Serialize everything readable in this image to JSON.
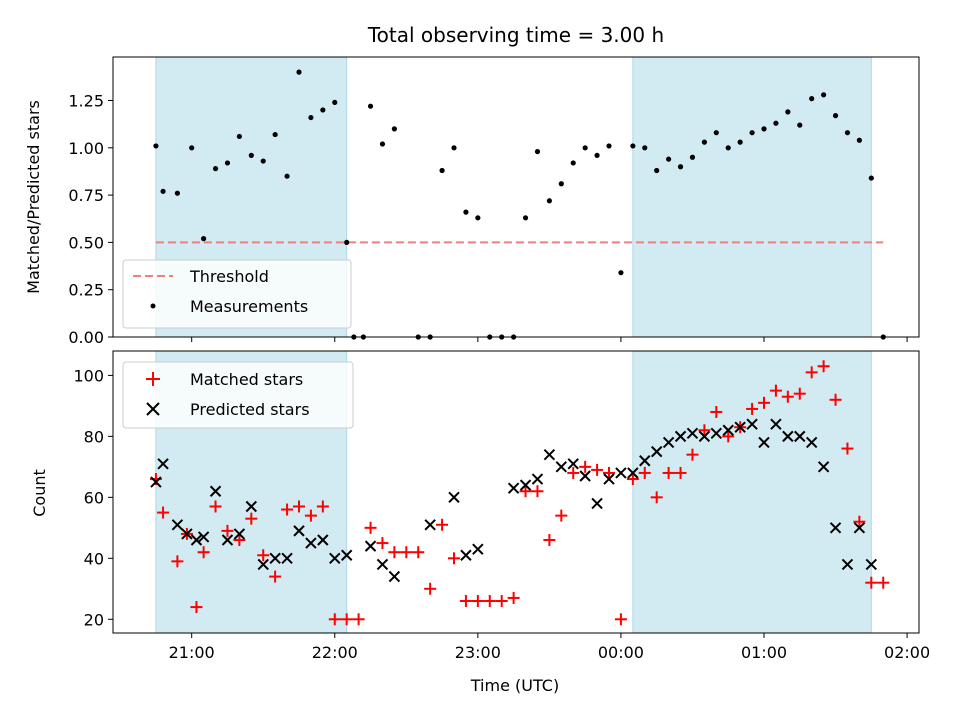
{
  "chart_data": [
    {
      "panel": "top",
      "type": "scatter",
      "title": "Total observing time = 3.00 h",
      "ylabel": "Matched/Predicted stars",
      "ylim": [
        0,
        1.48
      ],
      "yticks": [
        "0.00",
        "0.25",
        "0.50",
        "0.75",
        "1.00",
        "1.25"
      ],
      "shaded_intervals": [
        [
          "20:45",
          "22:05"
        ],
        [
          "00:05",
          "01:45"
        ]
      ],
      "shade_color": "#add8e6",
      "threshold": {
        "name": "Threshold",
        "y": 0.5,
        "x_range": [
          "20:45",
          "01:50"
        ],
        "color": "#f08080"
      },
      "series": [
        {
          "name": "Measurements",
          "color": "#000000",
          "x": [
            "20:45",
            "20:48",
            "20:54",
            "21:00",
            "21:05",
            "21:10",
            "21:15",
            "21:20",
            "21:25",
            "21:30",
            "21:35",
            "21:40",
            "21:45",
            "21:50",
            "21:55",
            "22:00",
            "22:05",
            "22:08",
            "22:12",
            "22:15",
            "22:20",
            "22:25",
            "22:35",
            "22:40",
            "22:45",
            "22:50",
            "22:55",
            "23:00",
            "23:05",
            "23:10",
            "23:15",
            "23:20",
            "23:25",
            "23:30",
            "23:35",
            "23:40",
            "23:45",
            "23:50",
            "23:55",
            "00:00",
            "00:05",
            "00:10",
            "00:15",
            "00:20",
            "00:25",
            "00:30",
            "00:35",
            "00:40",
            "00:45",
            "00:50",
            "00:55",
            "01:00",
            "01:05",
            "01:10",
            "01:15",
            "01:20",
            "01:25",
            "01:30",
            "01:35",
            "01:40",
            "01:45",
            "01:50"
          ],
          "y": [
            1.01,
            0.77,
            0.76,
            1.0,
            0.52,
            0.89,
            0.92,
            1.06,
            0.96,
            0.93,
            1.07,
            0.85,
            1.4,
            1.16,
            1.2,
            1.24,
            0.5,
            0.0,
            0.0,
            1.22,
            1.02,
            1.1,
            0.0,
            0.0,
            0.88,
            1.0,
            0.66,
            0.63,
            0.0,
            0.0,
            0.0,
            0.63,
            0.98,
            0.72,
            0.81,
            0.92,
            1.0,
            0.96,
            1.01,
            0.34,
            1.01,
            1.0,
            0.88,
            0.94,
            0.9,
            0.95,
            1.03,
            1.08,
            1.0,
            1.03,
            1.08,
            1.1,
            1.13,
            1.19,
            1.12,
            1.26,
            1.28,
            1.17,
            1.08,
            1.04,
            0.84,
            0.0
          ]
        }
      ],
      "legend": {
        "location": "lower-left",
        "entries": [
          "Threshold",
          "Measurements"
        ]
      }
    },
    {
      "panel": "bottom",
      "type": "scatter",
      "xlabel": "Time (UTC)",
      "ylabel": "Count",
      "ylim": [
        15.5,
        108
      ],
      "yticks": [
        "20",
        "40",
        "60",
        "80",
        "100"
      ],
      "xticks": [
        "21:00",
        "22:00",
        "23:00",
        "00:00",
        "01:00",
        "02:00"
      ],
      "x_range": [
        "20:27",
        "02:05"
      ],
      "shaded_intervals": [
        [
          "20:45",
          "22:05"
        ],
        [
          "00:05",
          "01:45"
        ]
      ],
      "shade_color": "#add8e6",
      "series": [
        {
          "name": "Matched stars",
          "marker": "+",
          "color": "#ff0000",
          "x": [
            "20:45",
            "20:48",
            "20:54",
            "20:58",
            "21:02",
            "21:05",
            "21:10",
            "21:15",
            "21:20",
            "21:25",
            "21:30",
            "21:35",
            "21:40",
            "21:45",
            "21:50",
            "21:55",
            "22:00",
            "22:05",
            "22:10",
            "22:15",
            "22:20",
            "22:25",
            "22:30",
            "22:35",
            "22:40",
            "22:45",
            "22:50",
            "22:55",
            "23:00",
            "23:05",
            "23:10",
            "23:15",
            "23:20",
            "23:25",
            "23:30",
            "23:35",
            "23:40",
            "23:45",
            "23:50",
            "23:55",
            "00:00",
            "00:05",
            "00:10",
            "00:15",
            "00:20",
            "00:25",
            "00:30",
            "00:35",
            "00:40",
            "00:45",
            "00:50",
            "00:55",
            "01:00",
            "01:05",
            "01:10",
            "01:15",
            "01:20",
            "01:25",
            "01:30",
            "01:35",
            "01:40",
            "01:45",
            "01:50"
          ],
          "y": [
            66,
            55,
            39,
            48,
            24,
            42,
            57,
            49,
            46,
            53,
            41,
            34,
            56,
            57,
            54,
            57,
            20,
            20,
            20,
            50,
            45,
            42,
            42,
            42,
            30,
            51,
            40,
            26,
            26,
            26,
            26,
            27,
            62,
            62,
            46,
            54,
            68,
            70,
            69,
            68,
            20,
            66,
            68,
            60,
            68,
            68,
            74,
            82,
            88,
            80,
            83,
            89,
            91,
            95,
            93,
            94,
            101,
            103,
            92,
            76,
            52,
            32,
            32
          ]
        },
        {
          "name": "Predicted stars",
          "marker": "x",
          "color": "#000000",
          "x": [
            "20:45",
            "20:48",
            "20:54",
            "20:58",
            "21:02",
            "21:05",
            "21:10",
            "21:15",
            "21:20",
            "21:25",
            "21:30",
            "21:35",
            "21:40",
            "21:45",
            "21:50",
            "21:55",
            "22:00",
            "22:05",
            "22:15",
            "22:20",
            "22:25",
            "22:40",
            "22:50",
            "22:55",
            "23:00",
            "23:15",
            "23:20",
            "23:25",
            "23:30",
            "23:35",
            "23:40",
            "23:45",
            "23:50",
            "23:55",
            "00:00",
            "00:05",
            "00:10",
            "00:15",
            "00:20",
            "00:25",
            "00:30",
            "00:35",
            "00:40",
            "00:45",
            "00:50",
            "00:55",
            "01:00",
            "01:05",
            "01:10",
            "01:15",
            "01:20",
            "01:25",
            "01:30",
            "01:35",
            "01:40",
            "01:45"
          ],
          "y": [
            65,
            71,
            51,
            48,
            46,
            47,
            62,
            46,
            48,
            57,
            38,
            40,
            40,
            49,
            45,
            46,
            40,
            41,
            44,
            38,
            34,
            51,
            60,
            41,
            43,
            63,
            64,
            66,
            74,
            70,
            71,
            67,
            58,
            66,
            68,
            68,
            72,
            75,
            78,
            80,
            81,
            80,
            81,
            82,
            83,
            84,
            78,
            84,
            80,
            80,
            78,
            70,
            50,
            38,
            50,
            38
          ]
        }
      ],
      "legend": {
        "location": "upper-left",
        "entries": [
          "Matched stars",
          "Predicted stars"
        ]
      }
    }
  ]
}
